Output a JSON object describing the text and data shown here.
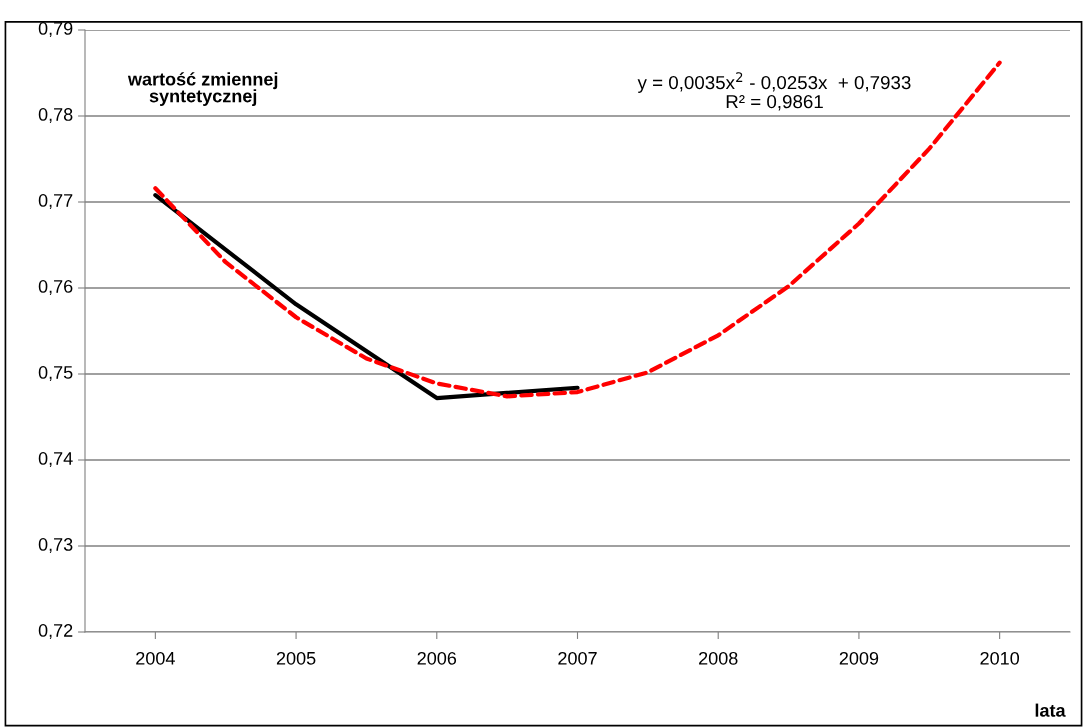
{
  "chart_data": {
    "type": "line",
    "ylabel": "wartość zmiennej\nsyntetycznej",
    "xlabel": "lata",
    "series": [
      {
        "color": "#000000",
        "x": [
          2004,
          2005,
          2006,
          2007
        ],
        "values": [
          0.7708,
          0.7581,
          0.7472,
          0.7484
        ],
        "line_style": "solid"
      },
      {
        "type": "line",
        "color": "#ff0000",
        "line_style": "dashed",
        "x": [
          2004,
          2004.5,
          2005,
          2005.5,
          2006,
          2006.5,
          2007,
          2007.5,
          2008,
          2008.5,
          2009,
          2009.5,
          2010
        ],
        "values": [
          0.7716,
          0.763,
          0.7566,
          0.7518,
          0.7489,
          0.7474,
          0.7479,
          0.7502,
          0.7545,
          0.7602,
          0.7675,
          0.7762,
          0.7862
        ]
      }
    ],
    "annotations": [
      "y = 0,0035x$^{2}$ - 0,0253x  + 0,7933\nR² = 0,9861"
    ],
    "xlim": [
      2003.5,
      2010.5
    ],
    "xticks": [
      2004,
      2005,
      2006,
      2007,
      2008,
      2009,
      2010
    ],
    "ylim": [
      0.72,
      0.79
    ],
    "yticks": [
      {
        "value": 0.72,
        "label": "0,72"
      },
      {
        "value": 0.73,
        "label": "0,73"
      },
      {
        "value": 0.74,
        "label": "0,74"
      },
      {
        "value": 0.75,
        "label": "0,75"
      },
      {
        "value": 0.76,
        "label": "0,76"
      },
      {
        "value": 0.77,
        "label": "0,77"
      },
      {
        "value": 0.78,
        "label": "0,78"
      },
      {
        "value": 0.79,
        "label": "0,79"
      }
    ],
    "grid": "y",
    "legend": false,
    "marker": "none"
  }
}
